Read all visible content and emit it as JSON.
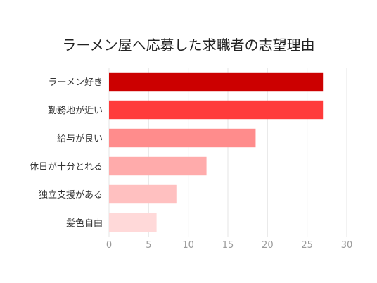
{
  "chart_data": {
    "type": "bar",
    "orientation": "horizontal",
    "title": "ラーメン屋へ応募した求職者の志望理由",
    "xlabel": "",
    "ylabel": "",
    "categories": [
      "ラーメン好き",
      "勤務地が近い",
      "給与が良い",
      "休日が十分とれる",
      "独立支援がある",
      "髪色自由"
    ],
    "values": [
      27,
      27,
      18.5,
      12.3,
      8.5,
      6
    ],
    "colors": [
      "#cc0000",
      "#ff3b3b",
      "#ff8c8c",
      "#ffabab",
      "#ffc0c0",
      "#ffd9d9"
    ],
    "xlim": [
      0,
      30
    ],
    "ticks": [
      "0",
      "5",
      "10",
      "15",
      "20",
      "25",
      "30"
    ],
    "grid": true,
    "legend": "none"
  }
}
